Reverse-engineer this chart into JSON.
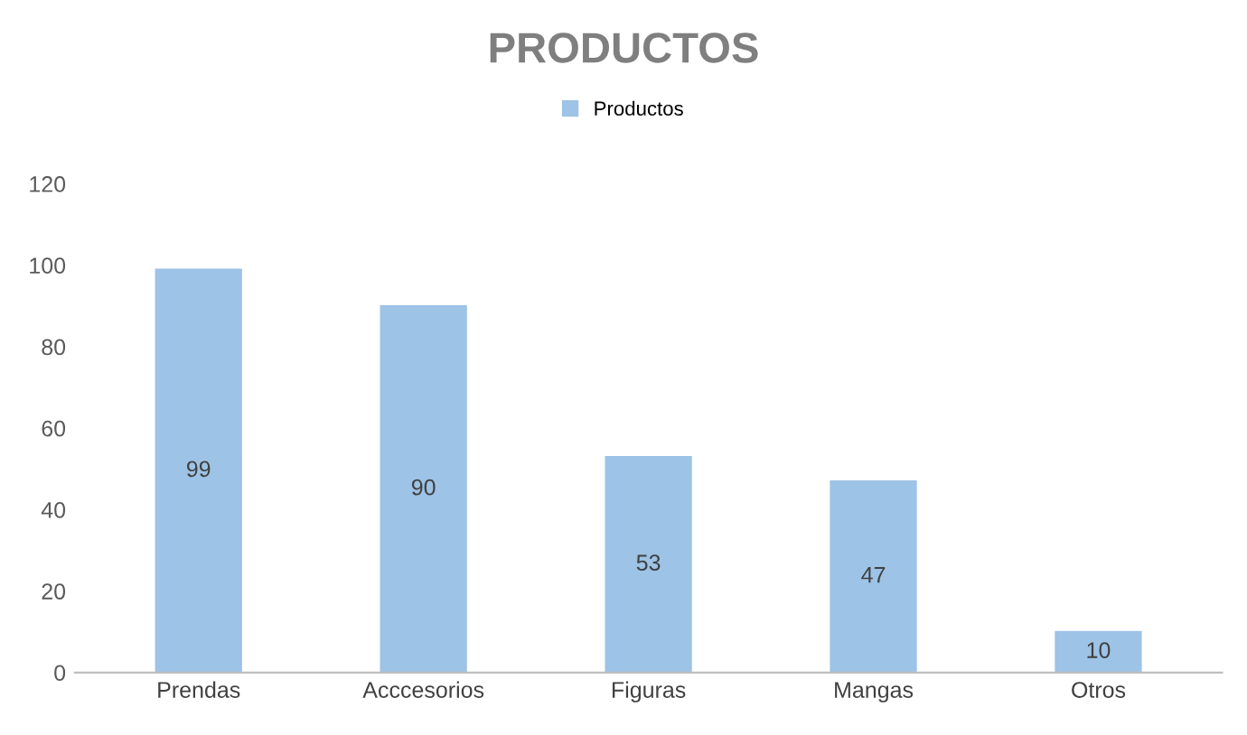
{
  "chart_data": {
    "type": "bar",
    "title": "PRODUCTOS",
    "categories": [
      "Prendas",
      "Acccesorios",
      "Figuras",
      "Mangas",
      "Otros"
    ],
    "series": [
      {
        "name": "Productos",
        "color": "#9dc3e6",
        "values": [
          99,
          90,
          53,
          47,
          10
        ]
      }
    ],
    "ylim": [
      0,
      120
    ],
    "yticks": [
      0,
      20,
      40,
      60,
      80,
      100,
      120
    ],
    "grid": false,
    "legend": "top",
    "data_labels": true
  }
}
